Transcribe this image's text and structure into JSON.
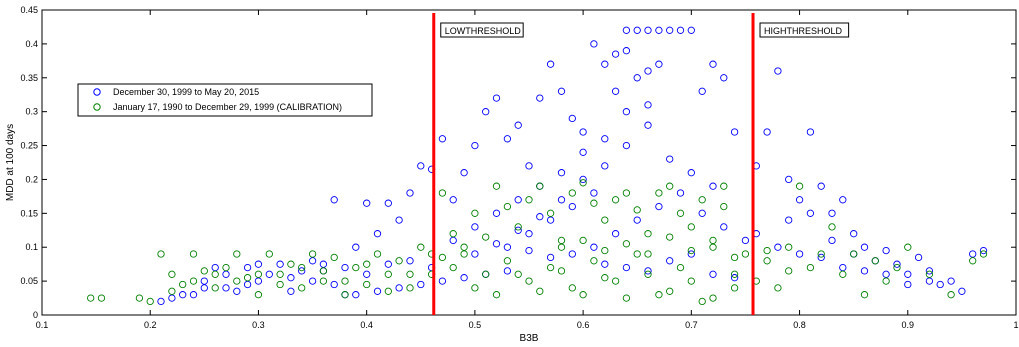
{
  "chart_data": {
    "type": "scatter",
    "xlabel": "B3B",
    "ylabel": "MDD at 100 days",
    "xlim": [
      0.1,
      1.0
    ],
    "ylim": [
      0,
      0.45
    ],
    "x_ticks": [
      0.1,
      0.2,
      0.3,
      0.4,
      0.5,
      0.6,
      0.7,
      0.8,
      0.9,
      1.0
    ],
    "x_tick_labels": [
      "0.1",
      "0.2",
      "0.3",
      "0.4",
      "0.5",
      "0.6",
      "0.7",
      "0.8",
      "0.9",
      "1"
    ],
    "y_ticks": [
      0,
      0.05,
      0.1,
      0.15,
      0.2,
      0.25,
      0.3,
      0.35,
      0.4,
      0.45
    ],
    "y_tick_labels": [
      "0",
      "0.05",
      "0.1",
      "0.15",
      "0.2",
      "0.25",
      "0.3",
      "0.35",
      "0.4",
      "0.45"
    ],
    "grid": false,
    "legend_position": "upper-left",
    "thresholds": [
      {
        "label": "LOWTHRESHOLD",
        "x": 0.462,
        "color": "#ff0000"
      },
      {
        "label": "HIGHTHRESHOLD",
        "x": 0.757,
        "color": "#ff0000"
      }
    ],
    "series": [
      {
        "name": "December 30, 1999 to May 20, 2015",
        "color": "#0000ff",
        "points": [
          [
            0.21,
            0.02
          ],
          [
            0.22,
            0.025
          ],
          [
            0.23,
            0.03
          ],
          [
            0.25,
            0.04
          ],
          [
            0.27,
            0.06
          ],
          [
            0.29,
            0.07
          ],
          [
            0.3,
            0.05
          ],
          [
            0.32,
            0.075
          ],
          [
            0.33,
            0.035
          ],
          [
            0.35,
            0.08
          ],
          [
            0.36,
            0.065
          ],
          [
            0.37,
            0.17
          ],
          [
            0.38,
            0.03
          ],
          [
            0.39,
            0.1
          ],
          [
            0.4,
            0.165
          ],
          [
            0.41,
            0.12
          ],
          [
            0.42,
            0.165
          ],
          [
            0.43,
            0.14
          ],
          [
            0.44,
            0.18
          ],
          [
            0.45,
            0.22
          ],
          [
            0.46,
            0.215
          ],
          [
            0.47,
            0.26
          ],
          [
            0.48,
            0.17
          ],
          [
            0.49,
            0.21
          ],
          [
            0.5,
            0.25
          ],
          [
            0.51,
            0.3
          ],
          [
            0.52,
            0.32
          ],
          [
            0.53,
            0.26
          ],
          [
            0.54,
            0.28
          ],
          [
            0.55,
            0.22
          ],
          [
            0.56,
            0.32
          ],
          [
            0.57,
            0.37
          ],
          [
            0.58,
            0.33
          ],
          [
            0.59,
            0.29
          ],
          [
            0.6,
            0.27
          ],
          [
            0.61,
            0.4
          ],
          [
            0.62,
            0.37
          ],
          [
            0.63,
            0.385
          ],
          [
            0.64,
            0.42
          ],
          [
            0.65,
            0.42
          ],
          [
            0.66,
            0.42
          ],
          [
            0.67,
            0.42
          ],
          [
            0.68,
            0.42
          ],
          [
            0.69,
            0.42
          ],
          [
            0.7,
            0.42
          ],
          [
            0.71,
            0.33
          ],
          [
            0.72,
            0.37
          ],
          [
            0.73,
            0.35
          ],
          [
            0.74,
            0.27
          ],
          [
            0.76,
            0.22
          ],
          [
            0.77,
            0.27
          ],
          [
            0.78,
            0.36
          ],
          [
            0.79,
            0.2
          ],
          [
            0.8,
            0.17
          ],
          [
            0.81,
            0.27
          ],
          [
            0.82,
            0.19
          ],
          [
            0.83,
            0.15
          ],
          [
            0.84,
            0.17
          ],
          [
            0.85,
            0.12
          ],
          [
            0.86,
            0.1
          ],
          [
            0.87,
            0.08
          ],
          [
            0.88,
            0.095
          ],
          [
            0.89,
            0.075
          ],
          [
            0.9,
            0.06
          ],
          [
            0.91,
            0.085
          ],
          [
            0.92,
            0.065
          ],
          [
            0.93,
            0.045
          ],
          [
            0.94,
            0.05
          ],
          [
            0.95,
            0.035
          ],
          [
            0.96,
            0.09
          ],
          [
            0.97,
            0.095
          ],
          [
            0.64,
            0.3
          ],
          [
            0.66,
            0.31
          ],
          [
            0.62,
            0.26
          ],
          [
            0.6,
            0.24
          ],
          [
            0.58,
            0.21
          ],
          [
            0.56,
            0.19
          ],
          [
            0.54,
            0.17
          ],
          [
            0.52,
            0.15
          ],
          [
            0.5,
            0.13
          ],
          [
            0.48,
            0.11
          ],
          [
            0.55,
            0.095
          ],
          [
            0.57,
            0.085
          ],
          [
            0.59,
            0.09
          ],
          [
            0.61,
            0.1
          ],
          [
            0.63,
            0.12
          ],
          [
            0.65,
            0.14
          ],
          [
            0.67,
            0.16
          ],
          [
            0.69,
            0.18
          ],
          [
            0.71,
            0.15
          ],
          [
            0.73,
            0.13
          ],
          [
            0.75,
            0.11
          ],
          [
            0.62,
            0.075
          ],
          [
            0.64,
            0.07
          ],
          [
            0.66,
            0.065
          ],
          [
            0.68,
            0.08
          ],
          [
            0.7,
            0.09
          ],
          [
            0.72,
            0.06
          ],
          [
            0.74,
            0.055
          ],
          [
            0.53,
            0.065
          ],
          [
            0.51,
            0.06
          ],
          [
            0.49,
            0.055
          ],
          [
            0.47,
            0.05
          ],
          [
            0.45,
            0.045
          ],
          [
            0.43,
            0.04
          ],
          [
            0.41,
            0.035
          ],
          [
            0.39,
            0.03
          ],
          [
            0.37,
            0.045
          ],
          [
            0.35,
            0.05
          ],
          [
            0.33,
            0.055
          ],
          [
            0.31,
            0.06
          ],
          [
            0.29,
            0.045
          ],
          [
            0.27,
            0.04
          ],
          [
            0.25,
            0.05
          ],
          [
            0.24,
            0.03
          ],
          [
            0.26,
            0.07
          ],
          [
            0.28,
            0.035
          ],
          [
            0.3,
            0.075
          ],
          [
            0.34,
            0.065
          ],
          [
            0.36,
            0.075
          ],
          [
            0.38,
            0.07
          ],
          [
            0.4,
            0.06
          ],
          [
            0.42,
            0.075
          ],
          [
            0.44,
            0.08
          ],
          [
            0.46,
            0.07
          ],
          [
            0.6,
            0.2
          ],
          [
            0.62,
            0.22
          ],
          [
            0.64,
            0.25
          ],
          [
            0.66,
            0.28
          ],
          [
            0.68,
            0.23
          ],
          [
            0.7,
            0.21
          ],
          [
            0.72,
            0.19
          ],
          [
            0.58,
            0.17
          ],
          [
            0.56,
            0.145
          ],
          [
            0.54,
            0.125
          ],
          [
            0.52,
            0.105
          ],
          [
            0.5,
            0.09
          ],
          [
            0.63,
            0.33
          ],
          [
            0.65,
            0.35
          ],
          [
            0.67,
            0.37
          ],
          [
            0.64,
            0.39
          ],
          [
            0.66,
            0.36
          ],
          [
            0.61,
            0.18
          ],
          [
            0.59,
            0.16
          ],
          [
            0.57,
            0.14
          ],
          [
            0.55,
            0.12
          ],
          [
            0.53,
            0.1
          ],
          [
            0.8,
            0.09
          ],
          [
            0.82,
            0.085
          ],
          [
            0.84,
            0.07
          ],
          [
            0.86,
            0.065
          ],
          [
            0.88,
            0.06
          ],
          [
            0.9,
            0.045
          ],
          [
            0.92,
            0.05
          ],
          [
            0.78,
            0.1
          ],
          [
            0.76,
            0.12
          ],
          [
            0.79,
            0.14
          ],
          [
            0.81,
            0.15
          ],
          [
            0.83,
            0.11
          ],
          [
            0.85,
            0.09
          ]
        ]
      },
      {
        "name": "January 17, 1990 to December 29, 1999 (CALIBRATION)",
        "color": "#008000",
        "points": [
          [
            0.145,
            0.025
          ],
          [
            0.155,
            0.025
          ],
          [
            0.19,
            0.025
          ],
          [
            0.2,
            0.02
          ],
          [
            0.21,
            0.09
          ],
          [
            0.22,
            0.06
          ],
          [
            0.23,
            0.045
          ],
          [
            0.24,
            0.09
          ],
          [
            0.25,
            0.065
          ],
          [
            0.26,
            0.04
          ],
          [
            0.27,
            0.07
          ],
          [
            0.28,
            0.09
          ],
          [
            0.29,
            0.055
          ],
          [
            0.3,
            0.03
          ],
          [
            0.31,
            0.09
          ],
          [
            0.32,
            0.06
          ],
          [
            0.33,
            0.075
          ],
          [
            0.34,
            0.04
          ],
          [
            0.35,
            0.09
          ],
          [
            0.36,
            0.05
          ],
          [
            0.37,
            0.085
          ],
          [
            0.38,
            0.03
          ],
          [
            0.39,
            0.07
          ],
          [
            0.4,
            0.045
          ],
          [
            0.41,
            0.09
          ],
          [
            0.42,
            0.06
          ],
          [
            0.43,
            0.08
          ],
          [
            0.44,
            0.04
          ],
          [
            0.45,
            0.1
          ],
          [
            0.46,
            0.06
          ],
          [
            0.47,
            0.18
          ],
          [
            0.48,
            0.12
          ],
          [
            0.49,
            0.09
          ],
          [
            0.5,
            0.15
          ],
          [
            0.51,
            0.06
          ],
          [
            0.52,
            0.19
          ],
          [
            0.53,
            0.08
          ],
          [
            0.54,
            0.13
          ],
          [
            0.55,
            0.05
          ],
          [
            0.56,
            0.19
          ],
          [
            0.57,
            0.07
          ],
          [
            0.58,
            0.11
          ],
          [
            0.59,
            0.04
          ],
          [
            0.6,
            0.195
          ],
          [
            0.61,
            0.08
          ],
          [
            0.62,
            0.14
          ],
          [
            0.63,
            0.05
          ],
          [
            0.64,
            0.18
          ],
          [
            0.65,
            0.09
          ],
          [
            0.66,
            0.12
          ],
          [
            0.67,
            0.03
          ],
          [
            0.68,
            0.19
          ],
          [
            0.69,
            0.07
          ],
          [
            0.7,
            0.13
          ],
          [
            0.71,
            0.02
          ],
          [
            0.72,
            0.1
          ],
          [
            0.73,
            0.19
          ],
          [
            0.74,
            0.06
          ],
          [
            0.75,
            0.09
          ],
          [
            0.76,
            0.05
          ],
          [
            0.77,
            0.08
          ],
          [
            0.78,
            0.04
          ],
          [
            0.79,
            0.1
          ],
          [
            0.8,
            0.19
          ],
          [
            0.81,
            0.07
          ],
          [
            0.82,
            0.09
          ],
          [
            0.83,
            0.13
          ],
          [
            0.84,
            0.06
          ],
          [
            0.85,
            0.09
          ],
          [
            0.86,
            0.03
          ],
          [
            0.87,
            0.08
          ],
          [
            0.88,
            0.05
          ],
          [
            0.89,
            0.07
          ],
          [
            0.9,
            0.1
          ],
          [
            0.92,
            0.06
          ],
          [
            0.94,
            0.03
          ],
          [
            0.96,
            0.08
          ],
          [
            0.97,
            0.09
          ],
          [
            0.5,
            0.04
          ],
          [
            0.52,
            0.03
          ],
          [
            0.54,
            0.06
          ],
          [
            0.56,
            0.035
          ],
          [
            0.58,
            0.065
          ],
          [
            0.6,
            0.03
          ],
          [
            0.62,
            0.055
          ],
          [
            0.64,
            0.025
          ],
          [
            0.66,
            0.06
          ],
          [
            0.68,
            0.035
          ],
          [
            0.7,
            0.05
          ],
          [
            0.72,
            0.025
          ],
          [
            0.74,
            0.04
          ],
          [
            0.48,
            0.07
          ],
          [
            0.46,
            0.09
          ],
          [
            0.44,
            0.06
          ],
          [
            0.42,
            0.035
          ],
          [
            0.4,
            0.075
          ],
          [
            0.38,
            0.05
          ],
          [
            0.36,
            0.065
          ],
          [
            0.34,
            0.07
          ],
          [
            0.32,
            0.045
          ],
          [
            0.3,
            0.06
          ],
          [
            0.28,
            0.05
          ],
          [
            0.26,
            0.06
          ],
          [
            0.24,
            0.05
          ],
          [
            0.22,
            0.035
          ],
          [
            0.53,
            0.16
          ],
          [
            0.55,
            0.17
          ],
          [
            0.57,
            0.15
          ],
          [
            0.59,
            0.18
          ],
          [
            0.61,
            0.165
          ],
          [
            0.63,
            0.17
          ],
          [
            0.65,
            0.155
          ],
          [
            0.67,
            0.18
          ],
          [
            0.69,
            0.15
          ],
          [
            0.71,
            0.17
          ],
          [
            0.73,
            0.16
          ],
          [
            0.51,
            0.115
          ],
          [
            0.49,
            0.1
          ],
          [
            0.47,
            0.085
          ],
          [
            0.58,
            0.1
          ],
          [
            0.6,
            0.11
          ],
          [
            0.62,
            0.095
          ],
          [
            0.64,
            0.105
          ],
          [
            0.66,
            0.09
          ],
          [
            0.68,
            0.115
          ],
          [
            0.7,
            0.095
          ],
          [
            0.72,
            0.11
          ],
          [
            0.74,
            0.085
          ],
          [
            0.77,
            0.095
          ],
          [
            0.79,
            0.065
          ]
        ]
      }
    ]
  }
}
